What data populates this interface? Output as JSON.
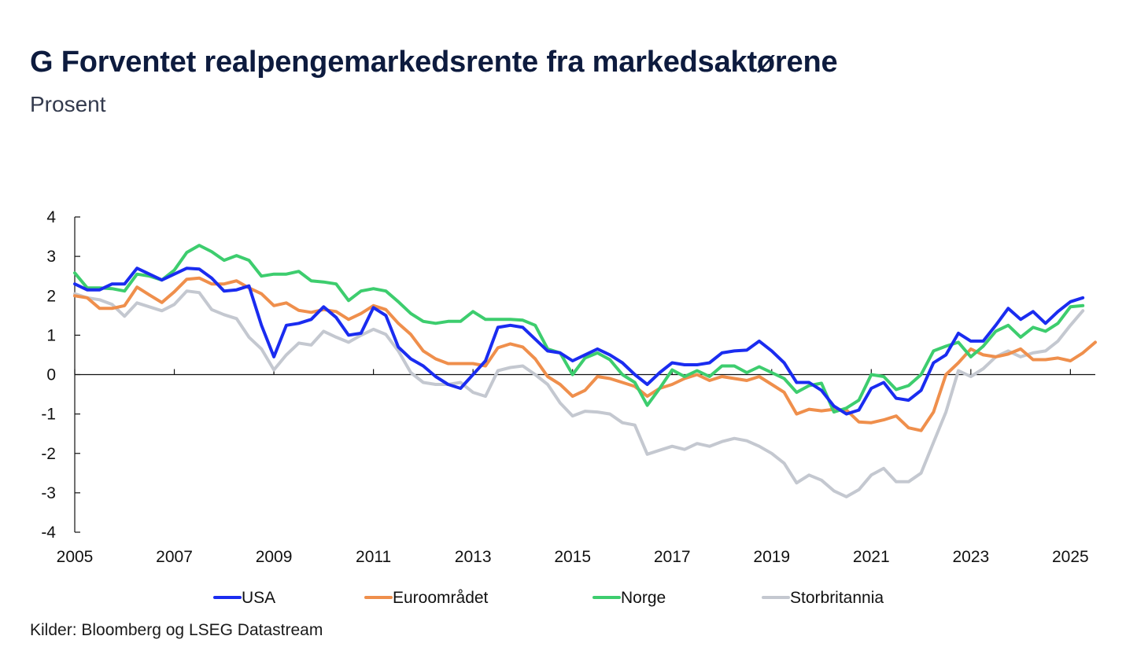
{
  "chart_data": {
    "type": "line",
    "title": "G Forventet realpengemarkedsrente fra markedsaktørene",
    "subtitle": "Prosent",
    "source": "Kilder: Bloomberg og LSEG  Datastream",
    "xlabel": "",
    "ylabel": "",
    "xlim": [
      2005,
      2025.5
    ],
    "ylim": [
      -4,
      4
    ],
    "yticks": [
      4,
      3,
      2,
      1,
      0,
      -1,
      -2,
      -3,
      -4
    ],
    "ytick_labels": [
      "4",
      "3",
      "2",
      "1",
      "0",
      "-1",
      "-2",
      "-3",
      "-4"
    ],
    "xticks": [
      2005,
      2007,
      2009,
      2011,
      2013,
      2015,
      2017,
      2019,
      2021,
      2023,
      2025
    ],
    "xtick_labels": [
      "2005",
      "2007",
      "2009",
      "2011",
      "2013",
      "2015",
      "2017",
      "2019",
      "2021",
      "2023",
      "2025"
    ],
    "x_start": 2005.0,
    "x_step": 0.25,
    "series": [
      {
        "name": "USA",
        "color": "#1a2cf0",
        "values": [
          2.3,
          2.15,
          2.15,
          2.3,
          2.3,
          2.7,
          2.55,
          2.4,
          2.55,
          2.7,
          2.68,
          2.45,
          2.12,
          2.15,
          2.25,
          1.25,
          0.45,
          1.25,
          1.3,
          1.4,
          1.72,
          1.45,
          1.0,
          1.05,
          1.7,
          1.5,
          0.7,
          0.4,
          0.22,
          -0.05,
          -0.25,
          -0.35,
          0.0,
          0.35,
          1.2,
          1.25,
          1.2,
          0.9,
          0.6,
          0.55,
          0.35,
          0.5,
          0.65,
          0.5,
          0.3,
          0.0,
          -0.25,
          0.05,
          0.3,
          0.25,
          0.25,
          0.3,
          0.55,
          0.6,
          0.62,
          0.85,
          0.6,
          0.3,
          -0.2,
          -0.2,
          -0.4,
          -0.8,
          -1.0,
          -0.9,
          -0.35,
          -0.2,
          -0.6,
          -0.65,
          -0.4,
          0.3,
          0.5,
          1.05,
          0.85,
          0.85,
          1.25,
          1.68,
          1.4,
          1.6,
          1.3,
          1.6,
          1.85,
          1.95
        ]
      },
      {
        "name": "Euroområdet",
        "color": "#ef8f4c",
        "values": [
          2.0,
          1.95,
          1.68,
          1.68,
          1.75,
          2.22,
          2.02,
          1.83,
          2.1,
          2.42,
          2.45,
          2.3,
          2.3,
          2.38,
          2.2,
          2.05,
          1.75,
          1.82,
          1.63,
          1.58,
          1.65,
          1.6,
          1.4,
          1.55,
          1.75,
          1.65,
          1.3,
          1.02,
          0.6,
          0.4,
          0.28,
          0.28,
          0.28,
          0.22,
          0.68,
          0.78,
          0.7,
          0.4,
          -0.05,
          -0.25,
          -0.55,
          -0.4,
          -0.05,
          -0.1,
          -0.2,
          -0.3,
          -0.55,
          -0.35,
          -0.25,
          -0.1,
          0.0,
          -0.15,
          -0.05,
          -0.1,
          -0.15,
          -0.05,
          -0.25,
          -0.45,
          -1.0,
          -0.88,
          -0.92,
          -0.88,
          -0.9,
          -1.2,
          -1.22,
          -1.15,
          -1.05,
          -1.35,
          -1.42,
          -0.95,
          0.0,
          0.3,
          0.65,
          0.5,
          0.45,
          0.52,
          0.65,
          0.38,
          0.38,
          0.42,
          0.35,
          0.55,
          0.82
        ]
      },
      {
        "name": "Norge",
        "color": "#3dcd6e",
        "values": [
          2.58,
          2.2,
          2.2,
          2.18,
          2.12,
          2.55,
          2.5,
          2.4,
          2.65,
          3.1,
          3.28,
          3.12,
          2.9,
          3.02,
          2.9,
          2.5,
          2.55,
          2.55,
          2.62,
          2.38,
          2.35,
          2.3,
          1.88,
          2.12,
          2.18,
          2.12,
          1.85,
          1.55,
          1.35,
          1.3,
          1.35,
          1.35,
          1.6,
          1.4,
          1.4,
          1.4,
          1.38,
          1.25,
          0.65,
          0.55,
          0.0,
          0.42,
          0.55,
          0.38,
          0.0,
          -0.2,
          -0.78,
          -0.35,
          0.12,
          -0.05,
          0.1,
          -0.05,
          0.22,
          0.22,
          0.05,
          0.2,
          0.05,
          -0.1,
          -0.45,
          -0.28,
          -0.22,
          -0.95,
          -0.85,
          -0.65,
          0.0,
          -0.05,
          -0.38,
          -0.28,
          0.0,
          0.6,
          0.72,
          0.82,
          0.45,
          0.72,
          1.1,
          1.25,
          0.95,
          1.2,
          1.1,
          1.3,
          1.72,
          1.75
        ]
      },
      {
        "name": "Storbritannia",
        "color": "#c4c8d0",
        "values": [
          2.05,
          1.95,
          1.9,
          1.78,
          1.48,
          1.82,
          1.72,
          1.62,
          1.78,
          2.12,
          2.08,
          1.65,
          1.52,
          1.42,
          0.95,
          0.65,
          0.12,
          0.5,
          0.8,
          0.75,
          1.1,
          0.95,
          0.82,
          1.0,
          1.15,
          1.02,
          0.6,
          0.05,
          -0.2,
          -0.25,
          -0.25,
          -0.2,
          -0.45,
          -0.55,
          0.1,
          0.18,
          0.22,
          0.0,
          -0.25,
          -0.72,
          -1.05,
          -0.93,
          -0.95,
          -1.0,
          -1.22,
          -1.28,
          -2.02,
          -1.92,
          -1.82,
          -1.9,
          -1.75,
          -1.82,
          -1.7,
          -1.62,
          -1.68,
          -1.82,
          -2.0,
          -2.25,
          -2.75,
          -2.55,
          -2.68,
          -2.95,
          -3.1,
          -2.92,
          -2.55,
          -2.38,
          -2.72,
          -2.72,
          -2.5,
          -1.72,
          -0.95,
          0.1,
          -0.05,
          0.15,
          0.45,
          0.6,
          0.45,
          0.55,
          0.6,
          0.85,
          1.25,
          1.62
        ]
      }
    ],
    "legend_placement": "bottom",
    "grid": false
  }
}
